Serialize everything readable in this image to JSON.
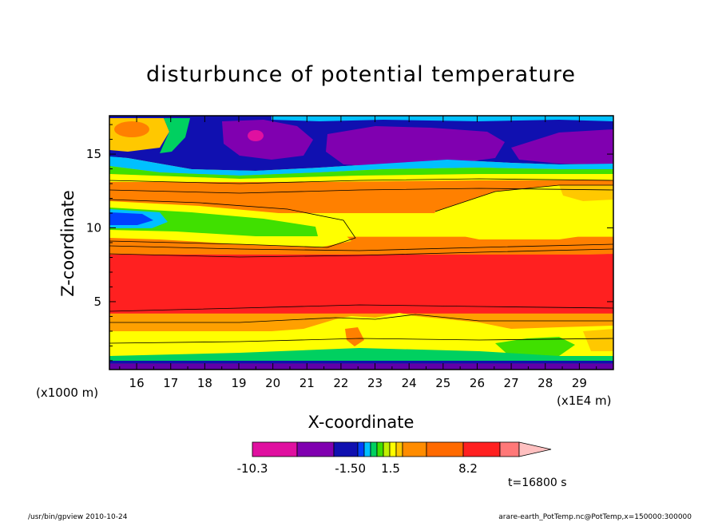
{
  "chart_data": {
    "type": "heatmap",
    "title": "disturbunce of potential temperature",
    "xlabel": "X-coordinate",
    "ylabel": "Z-coordinate",
    "x_unit_left": "(x1000 m)",
    "x_unit_right": "(x1E4 m)",
    "x_ticks": [
      "16",
      "17",
      "18",
      "19",
      "20",
      "21",
      "22",
      "23",
      "24",
      "25",
      "26",
      "27",
      "28",
      "29"
    ],
    "y_ticks": [
      "5",
      "10",
      "15"
    ],
    "xlim": [
      15.2,
      30.0
    ],
    "ylim": [
      0.4,
      17.6
    ],
    "time_label": "t=16800 s",
    "colorbar": {
      "labels": [
        {
          "text": "-10.3",
          "value": -10.3
        },
        {
          "text": "-1.50",
          "value": -1.5
        },
        {
          "text": "1.5",
          "value": 1.5
        },
        {
          "text": "8.2",
          "value": 8.2
        }
      ],
      "colors": [
        "#e010a0",
        "#8000b0",
        "#1010b0",
        "#0040ff",
        "#00c0ff",
        "#00d060",
        "#40e000",
        "#c0f000",
        "#ffff00",
        "#ffc800",
        "#ff8c00",
        "#ff6a00",
        "#ff2020",
        "#ff7878",
        "#ffc0c0"
      ]
    },
    "bands": [
      {
        "name": "surface-low",
        "zmin": 0.4,
        "zmax": 0.8,
        "color": "#6000a8"
      },
      {
        "name": "surface-cold",
        "zmin": 0.8,
        "zmax": 1.2,
        "color": "#1010b0"
      },
      {
        "name": "lower-yellow",
        "zmin": 1.2,
        "zmax": 3.0,
        "color": "#ffff00"
      },
      {
        "name": "lower-orange",
        "zmin": 3.0,
        "zmax": 4.2,
        "color": "#ffa000"
      },
      {
        "name": "lower-warm",
        "zmin": 4.2,
        "zmax": 8.2,
        "color": "#ff2020"
      },
      {
        "name": "mid-orange",
        "zmin": 8.2,
        "zmax": 9.4,
        "color": "#ff8000"
      },
      {
        "name": "mid-yellow",
        "zmin": 9.4,
        "zmax": 11.0,
        "color": "#ffff00"
      },
      {
        "name": "upper-orange",
        "zmin": 11.0,
        "zmax": 13.8,
        "color": "#ff8000"
      },
      {
        "name": "upper-transition",
        "zmin": 13.8,
        "zmax": 14.8,
        "color": "#ffc800"
      },
      {
        "name": "top-cold",
        "zmin": 14.8,
        "zmax": 17.6,
        "color": "#1010b0"
      }
    ],
    "features": [
      {
        "name": "cold-anomaly-west",
        "x": 19.5,
        "z": 16.3,
        "value": -10.3
      },
      {
        "name": "cold-anomaly-center",
        "x": 24.0,
        "z": 16.0,
        "value": -8.0
      },
      {
        "name": "warm-core-lower",
        "x": 23.0,
        "z": 6.0,
        "value": 8.2
      },
      {
        "name": "cold-tongue-west",
        "x": 16.0,
        "z": 10.6,
        "value": -1.5
      }
    ]
  },
  "footer": {
    "left": "/usr/bin/gpview   2010-10-24",
    "right": "arare-earth_PotTemp.nc@PotTemp,x=150000:300000"
  }
}
